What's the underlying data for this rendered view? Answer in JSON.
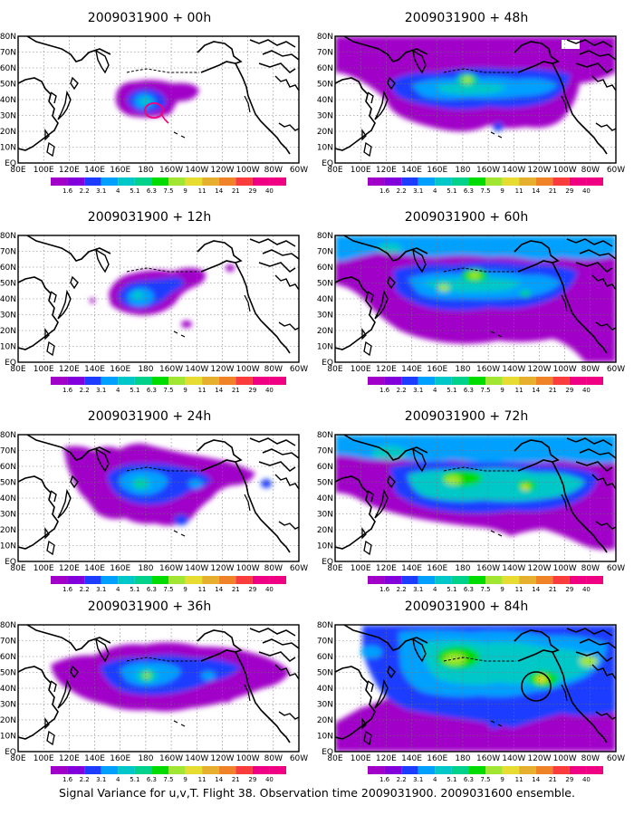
{
  "caption": "Signal Variance for u,v,T. Flight 38. Observation time 2009031900. 2009031600 ensemble.",
  "latitude_labels": [
    "80N",
    "70N",
    "60N",
    "50N",
    "40N",
    "30N",
    "20N",
    "10N",
    "EQ"
  ],
  "longitude_labels": [
    "80E",
    "100E",
    "120E",
    "140E",
    "160E",
    "180",
    "160W",
    "140W",
    "120W",
    "100W",
    "80W",
    "60W"
  ],
  "colorbar": {
    "labels": [
      "1.6",
      "2.2",
      "3.1",
      "4",
      "5.1",
      "6.3",
      "7.5",
      "9",
      "11",
      "14",
      "21",
      "29",
      "40"
    ],
    "colors": [
      "#a000c8",
      "#8200dc",
      "#1e3cff",
      "#00a0ff",
      "#00c8c8",
      "#00d28c",
      "#00dc00",
      "#a0e632",
      "#e6dc32",
      "#e6af2d",
      "#f08228",
      "#fa3c3c",
      "#f00082"
    ]
  },
  "panels": [
    {
      "title": "2009031900 + 00h",
      "lead_hours": 0
    },
    {
      "title": "2009031900 + 48h",
      "lead_hours": 48
    },
    {
      "title": "2009031900 + 12h",
      "lead_hours": 12
    },
    {
      "title": "2009031900 + 60h",
      "lead_hours": 60
    },
    {
      "title": "2009031900 + 24h",
      "lead_hours": 24
    },
    {
      "title": "2009031900 + 72h",
      "lead_hours": 72
    },
    {
      "title": "2009031900 + 36h",
      "lead_hours": 36
    },
    {
      "title": "2009031900 + 84h",
      "lead_hours": 84
    }
  ]
}
